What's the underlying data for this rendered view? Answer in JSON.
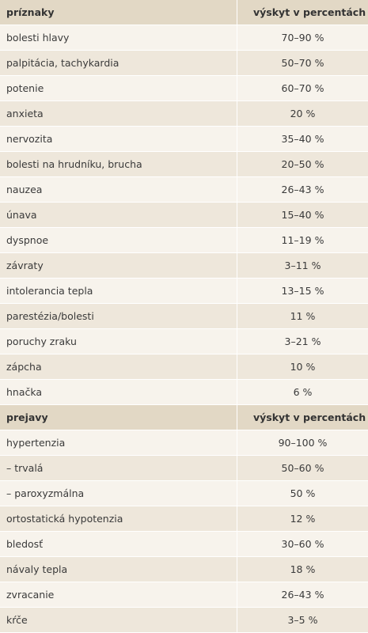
{
  "table": {
    "sections": [
      {
        "header": [
          "príznaky",
          "výskyt v percentách"
        ],
        "rows": [
          [
            "bolesti hlavy",
            "70–90 %"
          ],
          [
            "palpitácia, tachykardia",
            "50–70 %"
          ],
          [
            "potenie",
            "60–70 %"
          ],
          [
            "anxieta",
            "20 %"
          ],
          [
            "nervozita",
            "35–40 %"
          ],
          [
            "bolesti na hrudníku, brucha",
            "20–50 %"
          ],
          [
            "nauzea",
            "26–43 %"
          ],
          [
            "únava",
            "15–40 %"
          ],
          [
            "dyspnoe",
            "11–19 %"
          ],
          [
            "závraty",
            "3–11 %"
          ],
          [
            "intolerancia tepla",
            "13–15 %"
          ],
          [
            "parestézia/bolesti",
            "11 %"
          ],
          [
            "poruchy zraku",
            "3–21 %"
          ],
          [
            "zápcha",
            "10 %"
          ],
          [
            "hnačka",
            "6 %"
          ]
        ]
      },
      {
        "header": [
          "prejavy",
          "výskyt v percentách"
        ],
        "rows": [
          [
            "hypertenzia",
            "90–100 %"
          ],
          [
            "– trvalá",
            "50–60 %"
          ],
          [
            "– paroxyzmálna",
            "50 %"
          ],
          [
            "ortostatická hypotenzia",
            "12 %"
          ],
          [
            "bledosť",
            "30–60 %"
          ],
          [
            "návaly tepla",
            "18 %"
          ],
          [
            "zvracanie",
            "26–43 %"
          ],
          [
            "kŕče",
            "3–5 %"
          ]
        ]
      }
    ]
  }
}
